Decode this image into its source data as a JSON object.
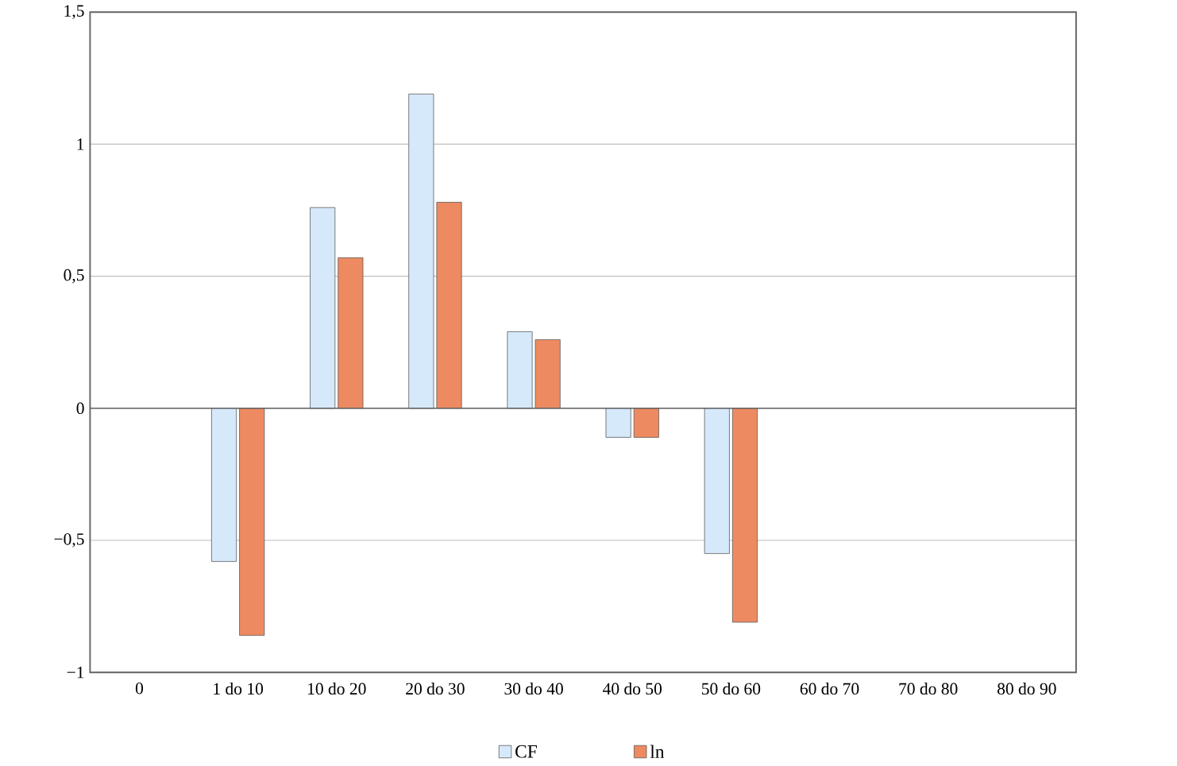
{
  "chart_data": {
    "type": "bar",
    "categories": [
      "0",
      "1 do 10",
      "10 do 20",
      "20 do 30",
      "30 do 40",
      "40 do 50",
      "50 do 60",
      "60 do 70",
      "70 do 80",
      "80 do 90"
    ],
    "series": [
      {
        "name": "CF",
        "color": "#d6e9fb",
        "values": [
          null,
          -0.58,
          0.76,
          1.19,
          0.29,
          -0.11,
          -0.55,
          null,
          null,
          null
        ]
      },
      {
        "name": "ln",
        "color": "#ee8a61",
        "values": [
          null,
          -0.86,
          0.57,
          0.78,
          0.26,
          -0.11,
          -0.81,
          null,
          null,
          null
        ]
      }
    ],
    "ylim": [
      -1,
      1.5
    ],
    "yticks": [
      {
        "value": -1,
        "label": "−1"
      },
      {
        "value": -0.5,
        "label": "−0,5"
      },
      {
        "value": 0,
        "label": "0"
      },
      {
        "value": 0.5,
        "label": "0,5"
      },
      {
        "value": 1,
        "label": "1"
      },
      {
        "value": 1.5,
        "label": "1,5"
      }
    ],
    "grid": "y",
    "legend": "bottom"
  }
}
